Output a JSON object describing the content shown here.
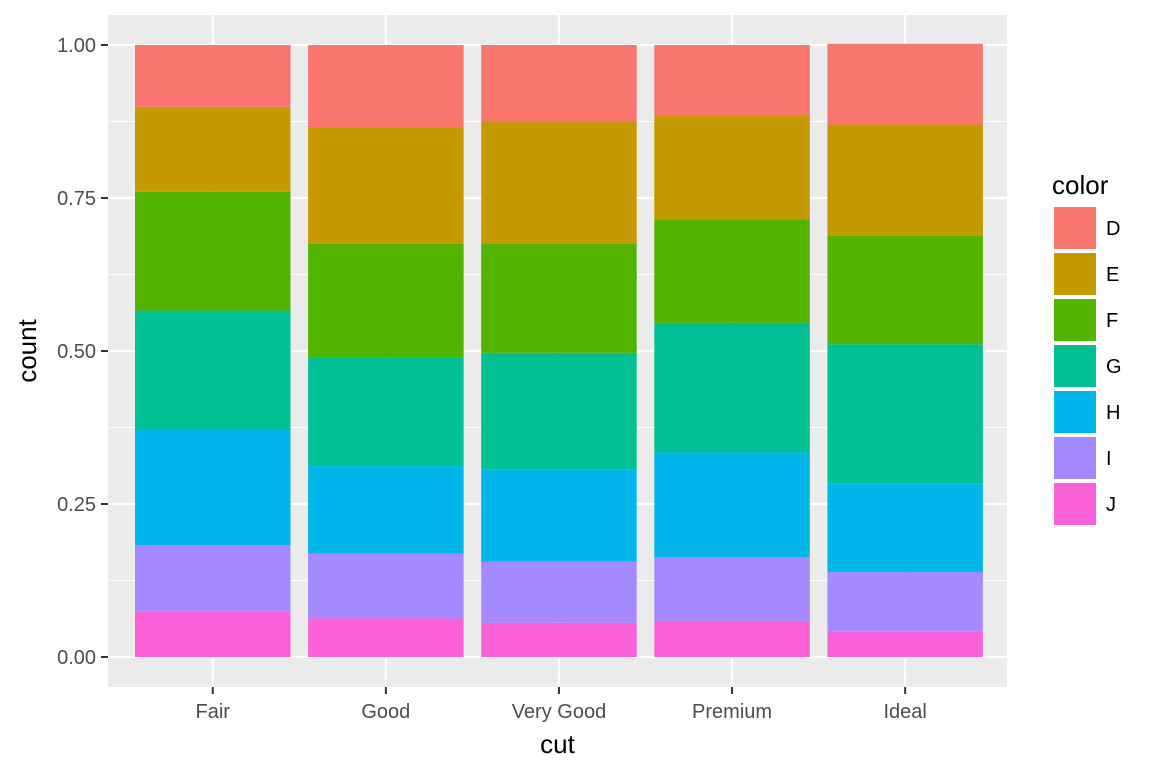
{
  "chart_data": {
    "type": "bar",
    "stacked": true,
    "position": "fill",
    "categories": [
      "Fair",
      "Good",
      "Very Good",
      "Premium",
      "Ideal"
    ],
    "xlabel": "cut",
    "ylabel": "count",
    "ylim": [
      0,
      1
    ],
    "yticks": [
      0.0,
      0.25,
      0.5,
      0.75,
      1.0
    ],
    "ytick_labels": [
      "0.00",
      "0.25",
      "0.50",
      "0.75",
      "1.00"
    ],
    "grid": true,
    "panel_background": "#EBEBEB",
    "legend": {
      "title": "color",
      "placement": "right"
    },
    "series": [
      {
        "name": "D",
        "color": "#F8766D",
        "values": [
          0.101,
          0.135,
          0.125,
          0.116,
          0.132
        ]
      },
      {
        "name": "E",
        "color": "#C49A00",
        "values": [
          0.139,
          0.19,
          0.199,
          0.169,
          0.181
        ]
      },
      {
        "name": "F",
        "color": "#53B400",
        "values": [
          0.194,
          0.185,
          0.179,
          0.169,
          0.178
        ]
      },
      {
        "name": "G",
        "color": "#00C094",
        "values": [
          0.195,
          0.178,
          0.19,
          0.212,
          0.227
        ]
      },
      {
        "name": "H",
        "color": "#00B6EB",
        "values": [
          0.188,
          0.143,
          0.151,
          0.171,
          0.145
        ]
      },
      {
        "name": "I",
        "color": "#A58AFF",
        "values": [
          0.109,
          0.106,
          0.1,
          0.104,
          0.097
        ]
      },
      {
        "name": "J",
        "color": "#FB61D7",
        "values": [
          0.074,
          0.063,
          0.056,
          0.059,
          0.042
        ]
      }
    ]
  }
}
